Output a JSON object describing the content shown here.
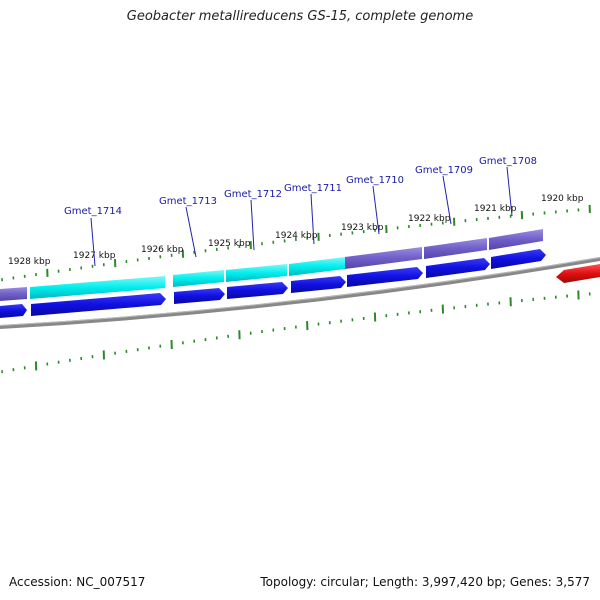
{
  "title": "Geobacter metallireducens GS-15, complete genome",
  "accession": "Accession: NC_007517",
  "topology": "Topology: circular; Length: 3,997,420 bp; Genes: 3,577",
  "colors": {
    "blast_light": "#00f0f0",
    "blast_dark": "#6f5fc8",
    "gene_forward": "#1010e0",
    "gene_other": "#e01010",
    "backbone": "#808080",
    "tick": "#2a8a2a",
    "label_line": "#2020b0"
  },
  "ticks": [
    {
      "label": "1928 kbp"
    },
    {
      "label": "1927 kbp"
    },
    {
      "label": "1926 kbp"
    },
    {
      "label": "1925 kbp"
    },
    {
      "label": "1924 kbp"
    },
    {
      "label": "1923 kbp"
    },
    {
      "label": "1922 kbp"
    },
    {
      "label": "1921 kbp"
    },
    {
      "label": "1920 kbp"
    }
  ],
  "genes": [
    {
      "label": "Gmet_1714"
    },
    {
      "label": "Gmet_1713"
    },
    {
      "label": "Gmet_1712"
    },
    {
      "label": "Gmet_1711"
    },
    {
      "label": "Gmet_1710"
    },
    {
      "label": "Gmet_1709"
    },
    {
      "label": "Gmet_1708"
    }
  ]
}
